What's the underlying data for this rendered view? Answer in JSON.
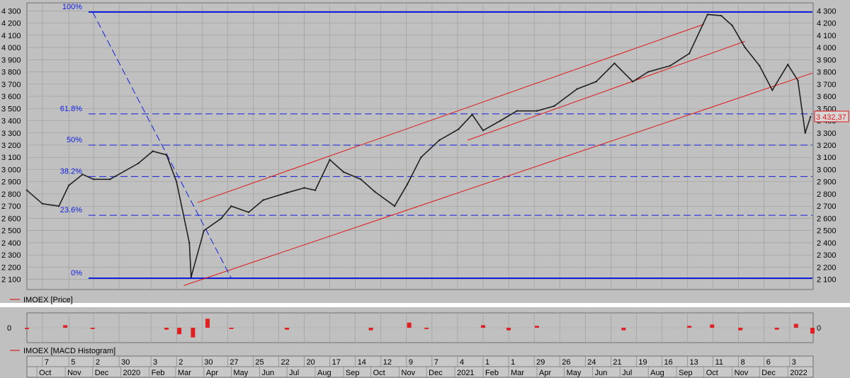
{
  "chart_data": [
    {
      "type": "line",
      "title": "",
      "legend": {
        "marker_color": "#d02020",
        "label": "IMOEX [Price]",
        "placement": "bottom-left"
      },
      "series": [
        {
          "name": "IMOEX [Price]",
          "x": [
            "2019-09-20",
            "2019-10-07",
            "2019-10-25",
            "2019-11-05",
            "2019-11-20",
            "2019-12-02",
            "2019-12-20",
            "2020-01-20",
            "2020-02-05",
            "2020-02-20",
            "2020-03-02",
            "2020-03-16",
            "2020-03-18",
            "2020-04-01",
            "2020-04-20",
            "2020-05-01",
            "2020-05-20",
            "2020-06-05",
            "2020-07-01",
            "2020-07-20",
            "2020-08-01",
            "2020-08-17",
            "2020-09-01",
            "2020-09-20",
            "2020-10-05",
            "2020-10-27",
            "2020-11-10",
            "2020-11-25",
            "2020-12-15",
            "2021-01-05",
            "2021-01-20",
            "2021-02-01",
            "2021-02-20",
            "2021-03-10",
            "2021-04-01",
            "2021-04-20",
            "2021-05-15",
            "2021-06-05",
            "2021-06-25",
            "2021-07-15",
            "2021-08-01",
            "2021-08-25",
            "2021-09-15",
            "2021-10-05",
            "2021-10-20",
            "2021-11-01",
            "2021-11-15",
            "2021-12-01",
            "2021-12-15",
            "2022-01-01",
            "2022-01-12",
            "2022-01-20",
            "2022-01-26"
          ],
          "values": [
            2830,
            2720,
            2700,
            2870,
            2960,
            2920,
            2920,
            3050,
            3150,
            3120,
            2900,
            2400,
            2120,
            2500,
            2600,
            2700,
            2650,
            2750,
            2810,
            2850,
            2830,
            3080,
            2980,
            2920,
            2820,
            2700,
            2880,
            3100,
            3240,
            3330,
            3450,
            3320,
            3400,
            3480,
            3480,
            3520,
            3660,
            3720,
            3870,
            3720,
            3800,
            3850,
            3950,
            4270,
            4260,
            4180,
            4000,
            3850,
            3650,
            3860,
            3730,
            3300,
            3432.37
          ]
        }
      ],
      "y_axis": {
        "ticks": [
          "4 300",
          "4 200",
          "4 100",
          "4 000",
          "3 900",
          "3 800",
          "3 700",
          "3 600",
          "3 500",
          "3 400",
          "3 300",
          "3 200",
          "3 100",
          "3 000",
          "2 900",
          "2 800",
          "2 700",
          "2 600",
          "2 500",
          "2 400",
          "2 300",
          "2 200",
          "2 100"
        ],
        "ylim": [
          2040,
          4330
        ]
      },
      "last_value_label": "3 432,37",
      "grid": true,
      "fibonacci": [
        {
          "label": "100%",
          "value": 4290
        },
        {
          "label": "61.8%",
          "value": 3456
        },
        {
          "label": "50%",
          "value": 3200
        },
        {
          "label": "38.2%",
          "value": 2943
        },
        {
          "label": "23.6%",
          "value": 2625
        },
        {
          "label": "0%",
          "value": 2110
        }
      ],
      "trend_lines": [
        {
          "name": "channel-upper-1",
          "from": [
            "2020-03-25",
            2730
          ],
          "to": [
            "2021-10-01",
            4190
          ]
        },
        {
          "name": "channel-lower-1",
          "from": [
            "2020-03-10",
            2050
          ],
          "to": [
            "2022-01-28",
            3790
          ]
        },
        {
          "name": "channel-upper-2",
          "from": [
            "2021-01-15",
            3240
          ],
          "to": [
            "2021-11-15",
            4050
          ]
        },
        {
          "name": "fib-retracement-diagonal",
          "from": [
            "2019-12-01",
            4290
          ],
          "to": [
            "2020-05-01",
            2110
          ]
        }
      ]
    },
    {
      "type": "bar",
      "legend": {
        "marker_color": "#d02020",
        "label": "IMOEX [MACD Histogram]",
        "placement": "bottom-left"
      },
      "y_axis": {
        "ticks": [
          "0"
        ],
        "ylim": [
          -22,
          22
        ]
      },
      "series": [
        {
          "name": "IMOEX [MACD Histogram]",
          "x": [
            "2019-09-20",
            "2019-11-01",
            "2019-12-01",
            "2020-02-20",
            "2020-03-05",
            "2020-03-20",
            "2020-04-05",
            "2020-05-01",
            "2020-07-01",
            "2020-10-01",
            "2020-11-12",
            "2020-12-01",
            "2021-02-01",
            "2021-03-01",
            "2021-04-01",
            "2021-07-05",
            "2021-09-15",
            "2021-10-10",
            "2021-11-10",
            "2021-12-20",
            "2022-01-10",
            "2022-01-28"
          ],
          "values": [
            -2,
            4,
            -2,
            -3,
            -10,
            -15,
            14,
            -2,
            -3,
            -4,
            8,
            -2,
            4,
            -4,
            3,
            -4,
            3,
            5,
            -4,
            -3,
            6,
            -9
          ]
        }
      ]
    }
  ],
  "x_axis": {
    "days": [
      {
        "date": "2019-10-07",
        "label": "7"
      },
      {
        "date": "2019-11-05",
        "label": "5"
      },
      {
        "date": "2019-12-02",
        "label": "2"
      },
      {
        "date": "2019-12-30",
        "label": "30"
      },
      {
        "date": "2020-02-03",
        "label": "3"
      },
      {
        "date": "2020-03-02",
        "label": "2"
      },
      {
        "date": "2020-03-30",
        "label": "30"
      },
      {
        "date": "2020-04-27",
        "label": "27"
      },
      {
        "date": "2020-05-25",
        "label": "25"
      },
      {
        "date": "2020-06-22",
        "label": "22"
      },
      {
        "date": "2020-07-20",
        "label": "20"
      },
      {
        "date": "2020-08-17",
        "label": "17"
      },
      {
        "date": "2020-09-14",
        "label": "14"
      },
      {
        "date": "2020-10-12",
        "label": "12"
      },
      {
        "date": "2020-11-09",
        "label": "9"
      },
      {
        "date": "2020-12-07",
        "label": "7"
      },
      {
        "date": "2021-01-04",
        "label": "4"
      },
      {
        "date": "2021-02-01",
        "label": "1"
      },
      {
        "date": "2021-03-01",
        "label": "1"
      },
      {
        "date": "2021-03-29",
        "label": "29"
      },
      {
        "date": "2021-04-26",
        "label": "26"
      },
      {
        "date": "2021-05-24",
        "label": "24"
      },
      {
        "date": "2021-06-21",
        "label": "21"
      },
      {
        "date": "2021-07-19",
        "label": "19"
      },
      {
        "date": "2021-08-16",
        "label": "16"
      },
      {
        "date": "2021-09-13",
        "label": "13"
      },
      {
        "date": "2021-10-11",
        "label": "11"
      },
      {
        "date": "2021-11-08",
        "label": "8"
      },
      {
        "date": "2021-12-06",
        "label": "6"
      },
      {
        "date": "2022-01-03",
        "label": "3"
      }
    ],
    "months": [
      {
        "date": "2019-10-01",
        "label": "Oct"
      },
      {
        "date": "2019-11-01",
        "label": "Nov"
      },
      {
        "date": "2019-12-01",
        "label": "Dec"
      },
      {
        "date": "2020-01-01",
        "label": "2020"
      },
      {
        "date": "2020-02-01",
        "label": "Feb"
      },
      {
        "date": "2020-03-01",
        "label": "Mar"
      },
      {
        "date": "2020-04-01",
        "label": "Apr"
      },
      {
        "date": "2020-05-01",
        "label": "May"
      },
      {
        "date": "2020-06-01",
        "label": "Jun"
      },
      {
        "date": "2020-07-01",
        "label": "Jul"
      },
      {
        "date": "2020-08-01",
        "label": "Aug"
      },
      {
        "date": "2020-09-01",
        "label": "Sep"
      },
      {
        "date": "2020-10-01",
        "label": "Oct"
      },
      {
        "date": "2020-11-01",
        "label": "Nov"
      },
      {
        "date": "2020-12-01",
        "label": "Dec"
      },
      {
        "date": "2021-01-01",
        "label": "2021"
      },
      {
        "date": "2021-02-01",
        "label": "Feb"
      },
      {
        "date": "2021-03-01",
        "label": "Mar"
      },
      {
        "date": "2021-04-01",
        "label": "Apr"
      },
      {
        "date": "2021-05-01",
        "label": "May"
      },
      {
        "date": "2021-06-01",
        "label": "Jun"
      },
      {
        "date": "2021-07-01",
        "label": "Jul"
      },
      {
        "date": "2021-08-01",
        "label": "Aug"
      },
      {
        "date": "2021-09-01",
        "label": "Sep"
      },
      {
        "date": "2021-10-01",
        "label": "Oct"
      },
      {
        "date": "2021-11-01",
        "label": "Nov"
      },
      {
        "date": "2021-12-01",
        "label": "Dec"
      },
      {
        "date": "2022-01-01",
        "label": "2022"
      }
    ]
  },
  "colors": {
    "background": "#c0c0c0",
    "price_line": "#202020",
    "fibonacci": "#1020e0",
    "trend_line": "#e01818",
    "histogram": "#e02020",
    "grid": "#9a9a9a",
    "last_value_label": "#e01818"
  }
}
